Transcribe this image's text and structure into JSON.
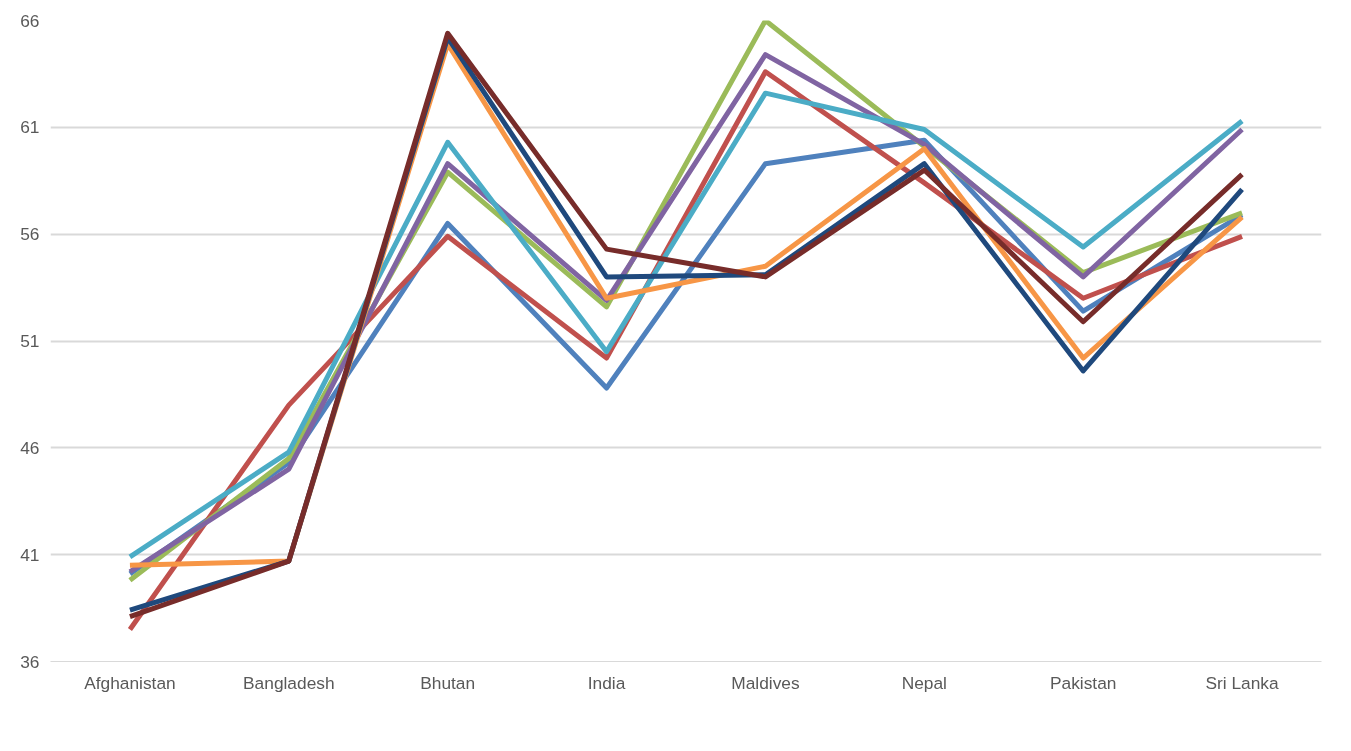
{
  "chart_data": {
    "type": "line",
    "categories": [
      "Afghanistan",
      "Bangladesh",
      "Bhutan",
      "India",
      "Maldives",
      "Nepal",
      "Pakistan",
      "Sri Lanka"
    ],
    "series": [
      {
        "color": "#4f81bd",
        "values": [
          40.1,
          45.3,
          56.5,
          48.8,
          59.3,
          60.4,
          52.4,
          56.9
        ]
      },
      {
        "color": "#c0504d",
        "values": [
          37.5,
          48.0,
          55.9,
          50.2,
          63.6,
          58.4,
          53.0,
          55.9
        ]
      },
      {
        "color": "#9bbb59",
        "values": [
          39.8,
          45.5,
          58.9,
          52.6,
          66.0,
          60.1,
          54.2,
          57.0
        ]
      },
      {
        "color": "#8064a2",
        "values": [
          40.2,
          45.0,
          59.3,
          52.9,
          64.4,
          60.2,
          54.0,
          60.9
        ]
      },
      {
        "color": "#4bacc6",
        "values": [
          40.9,
          45.8,
          60.3,
          50.5,
          62.6,
          60.9,
          55.4,
          61.3
        ]
      },
      {
        "color": "#f79646",
        "values": [
          40.5,
          40.7,
          64.9,
          53.0,
          54.5,
          60.0,
          50.2,
          56.8
        ]
      },
      {
        "color": "#1f497d",
        "values": [
          38.4,
          40.7,
          65.2,
          54.0,
          54.1,
          59.3,
          49.6,
          58.1
        ]
      },
      {
        "color": "#772c2a",
        "values": [
          38.1,
          40.7,
          65.4,
          55.3,
          54.0,
          59.0,
          51.9,
          58.8
        ]
      }
    ],
    "ylim": [
      36,
      66
    ],
    "yticks": [
      36,
      41,
      46,
      51,
      56,
      61,
      66
    ],
    "grid": "y",
    "marker": "none",
    "line_style": "solid"
  }
}
